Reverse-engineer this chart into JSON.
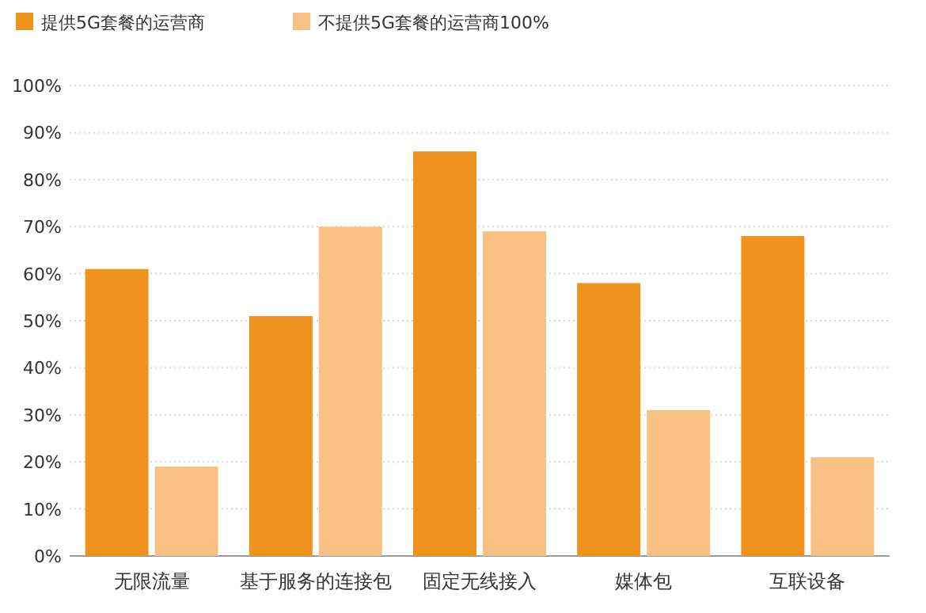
{
  "chart_data": {
    "type": "bar",
    "categories": [
      "无限流量",
      "基于服务的连接包",
      "固定无线接入",
      "媒体包",
      "互联设备"
    ],
    "series": [
      {
        "name": "提供5G套餐的运营商",
        "color": "#f0931e",
        "values": [
          61,
          51,
          86,
          58,
          68
        ]
      },
      {
        "name": "不提供5G套餐的运营商100%",
        "color": "#f9c083",
        "values": [
          19,
          70,
          69,
          31,
          21
        ]
      }
    ],
    "ylim": [
      0,
      100
    ],
    "yticks": [
      {
        "value": 0,
        "label": "0%"
      },
      {
        "value": 10,
        "label": "10%"
      },
      {
        "value": 20,
        "label": "20%"
      },
      {
        "value": 30,
        "label": "30%"
      },
      {
        "value": 40,
        "label": "40%"
      },
      {
        "value": 50,
        "label": "50%"
      },
      {
        "value": 60,
        "label": "60%"
      },
      {
        "value": 70,
        "label": "70%"
      },
      {
        "value": 80,
        "label": "80%"
      },
      {
        "value": 90,
        "label": "90%"
      },
      {
        "value": 100,
        "label": "100%"
      }
    ],
    "grid": "y",
    "legend": "top left"
  }
}
